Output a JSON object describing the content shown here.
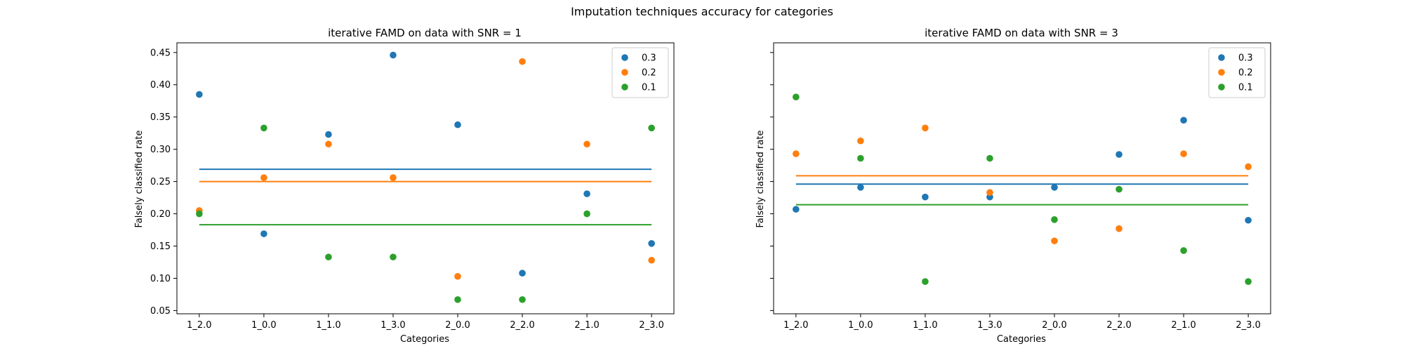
{
  "figure": {
    "suptitle": "Imputation techniques accuracy for categories"
  },
  "chart_data": [
    {
      "type": "scatter",
      "title": "iterative FAMD on data with SNR = 1",
      "xlabel": "Categories",
      "ylabel": "Falsely classified rate",
      "categories": [
        "1_2.0",
        "1_0.0",
        "1_1.0",
        "1_3.0",
        "2_0.0",
        "2_2.0",
        "2_1.0",
        "2_3.0"
      ],
      "ylim": [
        0.045,
        0.465
      ],
      "yticks": [
        0.05,
        0.1,
        0.15,
        0.2,
        0.25,
        0.3,
        0.35,
        0.4,
        0.45
      ],
      "ytick_labels": [
        "0.05",
        "0.10",
        "0.15",
        "0.20",
        "0.25",
        "0.30",
        "0.35",
        "0.40",
        "0.45"
      ],
      "show_ytick_labels": true,
      "grid": false,
      "legend": "top-right",
      "series": [
        {
          "name": "0.3",
          "color": "#1f77b4",
          "values": [
            0.385,
            0.169,
            0.323,
            0.446,
            0.338,
            0.108,
            0.231,
            0.154
          ],
          "mean": 0.269
        },
        {
          "name": "0.2",
          "color": "#ff7f0e",
          "values": [
            0.205,
            0.256,
            0.308,
            0.256,
            0.103,
            0.436,
            0.308,
            0.128
          ],
          "mean": 0.25
        },
        {
          "name": "0.1",
          "color": "#2ca02c",
          "values": [
            0.2,
            0.333,
            0.133,
            0.133,
            0.067,
            0.067,
            0.2,
            0.333
          ],
          "mean": 0.183
        }
      ]
    },
    {
      "type": "scatter",
      "title": "iterative FAMD on data with SNR = 3",
      "xlabel": "Categories",
      "ylabel": "Falsely classified rate",
      "categories": [
        "1_2.0",
        "1_0.0",
        "1_1.0",
        "1_3.0",
        "2_0.0",
        "2_2.0",
        "2_1.0",
        "2_3.0"
      ],
      "ylim": [
        0.045,
        0.465
      ],
      "yticks": [
        0.05,
        0.1,
        0.15,
        0.2,
        0.25,
        0.3,
        0.35,
        0.4,
        0.45
      ],
      "ytick_labels": [
        "0.05",
        "0.10",
        "0.15",
        "0.20",
        "0.25",
        "0.30",
        "0.35",
        "0.40",
        "0.45"
      ],
      "show_ytick_labels": false,
      "grid": false,
      "legend": "top-right",
      "series": [
        {
          "name": "0.3",
          "color": "#1f77b4",
          "values": [
            0.207,
            0.241,
            0.226,
            0.226,
            0.241,
            0.292,
            0.345,
            0.19
          ],
          "mean": 0.246
        },
        {
          "name": "0.2",
          "color": "#ff7f0e",
          "values": [
            0.293,
            0.313,
            0.333,
            0.233,
            0.158,
            0.177,
            0.293,
            0.273
          ],
          "mean": 0.259
        },
        {
          "name": "0.1",
          "color": "#2ca02c",
          "values": [
            0.381,
            0.286,
            0.095,
            0.286,
            0.191,
            0.238,
            0.143,
            0.095
          ],
          "mean": 0.214
        }
      ]
    }
  ]
}
